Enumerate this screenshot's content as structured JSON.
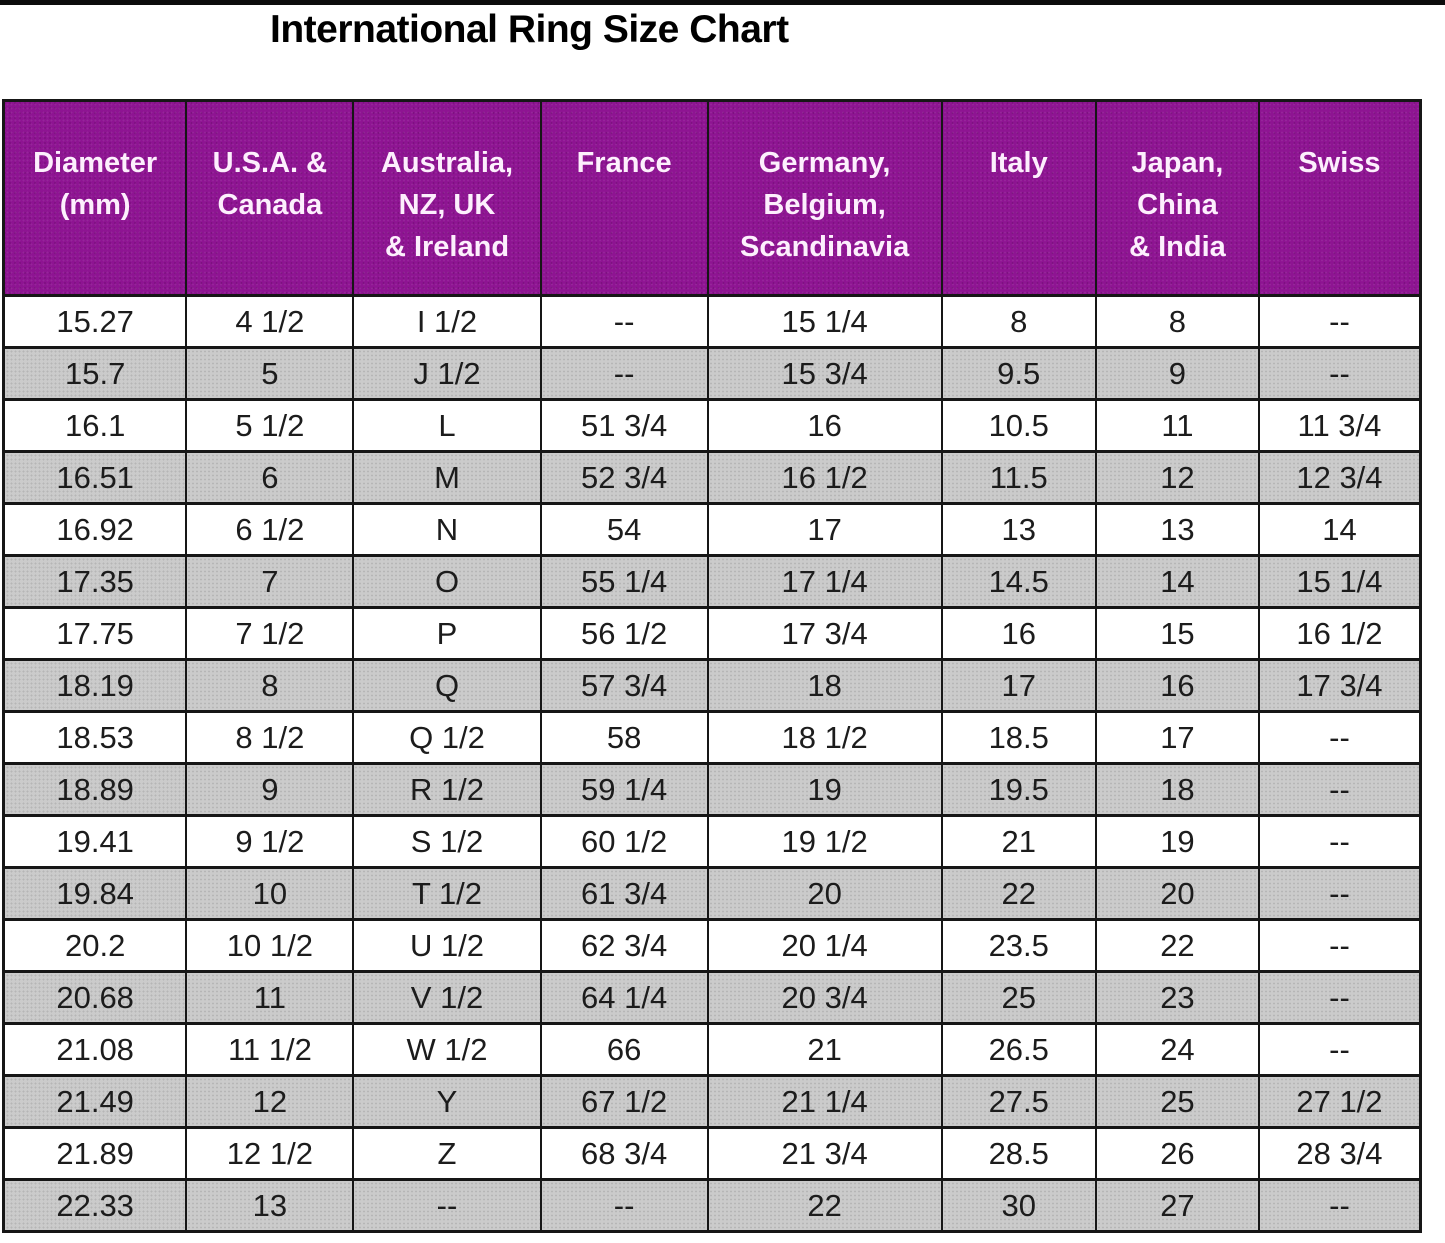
{
  "title": "International Ring Size Chart",
  "colors": {
    "header_bg": "#8E1492",
    "header_text": "#FDEFFD",
    "row_bg": "#FFFFFF",
    "row_alt_bg": "#CBCBCB",
    "row_alt_dot": "#B6B6B6",
    "border": "#161616",
    "title_text": "#000000",
    "cell_text": "#1C1C1C"
  },
  "chart_data": {
    "type": "table",
    "title": "International Ring Size Chart",
    "columns": [
      "Diameter\n(mm)",
      "U.S.A. &\nCanada",
      "Australia,\nNZ, UK\n& Ireland",
      "France",
      "Germany,\nBelgium,\nScandinavia",
      "Italy",
      "Japan,\nChina\n& India",
      "Swiss"
    ],
    "col_widths_pct": [
      12.9,
      11.8,
      13.2,
      11.8,
      16.5,
      10.9,
      11.5,
      11.4
    ],
    "rows": [
      [
        "15.27",
        "4 1/2",
        "I 1/2",
        "--",
        "15 1/4",
        "8",
        "8",
        "--"
      ],
      [
        "15.7",
        "5",
        "J 1/2",
        "--",
        "15 3/4",
        "9.5",
        "9",
        "--"
      ],
      [
        "16.1",
        "5 1/2",
        "L",
        "51 3/4",
        "16",
        "10.5",
        "11",
        "11 3/4"
      ],
      [
        "16.51",
        "6",
        "M",
        "52 3/4",
        "16 1/2",
        "11.5",
        "12",
        "12 3/4"
      ],
      [
        "16.92",
        "6 1/2",
        "N",
        "54",
        "17",
        "13",
        "13",
        "14"
      ],
      [
        "17.35",
        "7",
        "O",
        "55 1/4",
        "17 1/4",
        "14.5",
        "14",
        "15 1/4"
      ],
      [
        "17.75",
        "7 1/2",
        "P",
        "56 1/2",
        "17 3/4",
        "16",
        "15",
        "16 1/2"
      ],
      [
        "18.19",
        "8",
        "Q",
        "57 3/4",
        "18",
        "17",
        "16",
        "17 3/4"
      ],
      [
        "18.53",
        "8 1/2",
        "Q 1/2",
        "58",
        "18 1/2",
        "18.5",
        "17",
        "--"
      ],
      [
        "18.89",
        "9",
        "R 1/2",
        "59 1/4",
        "19",
        "19.5",
        "18",
        "--"
      ],
      [
        "19.41",
        "9 1/2",
        "S 1/2",
        "60 1/2",
        "19 1/2",
        "21",
        "19",
        "--"
      ],
      [
        "19.84",
        "10",
        "T 1/2",
        "61 3/4",
        "20",
        "22",
        "20",
        "--"
      ],
      [
        "20.2",
        "10 1/2",
        "U 1/2",
        "62 3/4",
        "20 1/4",
        "23.5",
        "22",
        "--"
      ],
      [
        "20.68",
        "11",
        "V 1/2",
        "64 1/4",
        "20 3/4",
        "25",
        "23",
        "--"
      ],
      [
        "21.08",
        "11 1/2",
        "W 1/2",
        "66",
        "21",
        "26.5",
        "24",
        "--"
      ],
      [
        "21.49",
        "12",
        "Y",
        "67 1/2",
        "21 1/4",
        "27.5",
        "25",
        "27 1/2"
      ],
      [
        "21.89",
        "12 1/2",
        "Z",
        "68 3/4",
        "21 3/4",
        "28.5",
        "26",
        "28 3/4"
      ],
      [
        "22.33",
        "13",
        "--",
        "--",
        "22",
        "30",
        "27",
        "--"
      ]
    ],
    "layout": {
      "grid": true,
      "row_striping": "alternating white and dotted gray, gray on 2nd/4th/6th... rows",
      "header_position": "top",
      "header_valign": "top",
      "cell_align": "center"
    }
  }
}
